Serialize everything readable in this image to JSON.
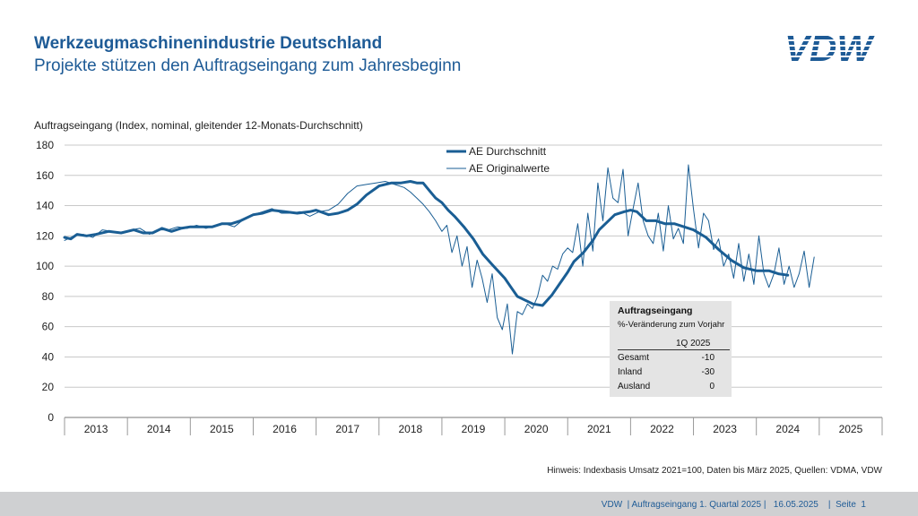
{
  "slide": {
    "title": "Werkzeugmaschinenindustrie Deutschland",
    "subtitle": "Projekte stützen den Auftragseingang zum Jahresbeginn",
    "logo_text": "VDW",
    "note": "Hinweis: Indexbasis Umsatz 2021=100, Daten bis März 2025, Quellen: VDMA, VDW",
    "footer": "VDW  | Auftragseingang 1. Quartal 2025 |   16.05.2025    |  Seite  1"
  },
  "colors": {
    "brand": "#1e5b96",
    "series": "#1a5e94",
    "grid": "#c8c8c8",
    "footer_bg": "#cfd0d2",
    "box_bg": "#e4e4e4"
  },
  "stat_box": {
    "title": "Auftragseingang",
    "subtitle": "%-Veränderung zum Vorjahr",
    "column_header": "1Q 2025",
    "rows": [
      {
        "label": "Gesamt",
        "value": "-10"
      },
      {
        "label": "Inland",
        "value": "-30"
      },
      {
        "label": "Ausland",
        "value": "0"
      }
    ]
  },
  "chart_data": {
    "type": "line",
    "title": "",
    "ylabel": "Auftragseingang (Index, nominal, gleitender 12-Monats-Durchschnitt)",
    "xlabel": "",
    "ylim": [
      0,
      180
    ],
    "yticks": [
      0,
      20,
      40,
      60,
      80,
      100,
      120,
      140,
      160,
      180
    ],
    "xlim": [
      2013,
      2026
    ],
    "categories": [
      "2013",
      "2014",
      "2015",
      "2016",
      "2017",
      "2018",
      "2019",
      "2020",
      "2021",
      "2022",
      "2023",
      "2024",
      "2025"
    ],
    "grid": true,
    "legend_position": "top-center",
    "series": [
      {
        "name": "AE Durchschnitt",
        "style": "thick",
        "x": [
          2013.0,
          2013.1,
          2013.2,
          2013.35,
          2013.5,
          2013.7,
          2013.9,
          2014.1,
          2014.25,
          2014.4,
          2014.55,
          2014.7,
          2014.85,
          2015.0,
          2015.2,
          2015.35,
          2015.5,
          2015.65,
          2015.8,
          2016.0,
          2016.15,
          2016.3,
          2016.5,
          2016.7,
          2016.9,
          2017.0,
          2017.2,
          2017.35,
          2017.5,
          2017.65,
          2017.8,
          2018.0,
          2018.2,
          2018.35,
          2018.5,
          2018.6,
          2018.7,
          2018.8,
          2018.9,
          2019.0,
          2019.1,
          2019.2,
          2019.35,
          2019.5,
          2019.65,
          2019.8,
          2020.0,
          2020.1,
          2020.2,
          2020.3,
          2020.45,
          2020.6,
          2020.75,
          2020.9,
          2021.0,
          2021.1,
          2021.25,
          2021.4,
          2021.5,
          2021.6,
          2021.75,
          2021.9,
          2022.0,
          2022.1,
          2022.25,
          2022.4,
          2022.55,
          2022.7,
          2022.85,
          2023.0,
          2023.2,
          2023.4,
          2023.6,
          2023.8,
          2024.0,
          2024.2,
          2024.35,
          2024.5
        ],
        "values": [
          119,
          118,
          121,
          120,
          121,
          123,
          122,
          124,
          122,
          122,
          125,
          123,
          125,
          126,
          126,
          126,
          128,
          128,
          130,
          134,
          135,
          137,
          136,
          135,
          136,
          137,
          134,
          135,
          137,
          141,
          147,
          153,
          155,
          155,
          156,
          155,
          155,
          150,
          145,
          142,
          137,
          133,
          126,
          118,
          108,
          101,
          92,
          86,
          80,
          78,
          75,
          74,
          81,
          90,
          96,
          103,
          109,
          117,
          124,
          128,
          134,
          136,
          137,
          136,
          130,
          130,
          128,
          128,
          126,
          124,
          119,
          111,
          104,
          99,
          97,
          97,
          95,
          94
        ]
      },
      {
        "name": "AE Originalwerte",
        "style": "thin",
        "x": [
          2013.0,
          2013.15,
          2013.3,
          2013.45,
          2013.6,
          2013.75,
          2013.9,
          2014.05,
          2014.2,
          2014.35,
          2014.5,
          2014.65,
          2014.8,
          2014.95,
          2015.1,
          2015.25,
          2015.4,
          2015.55,
          2015.7,
          2015.85,
          2016.0,
          2016.15,
          2016.3,
          2016.45,
          2016.6,
          2016.75,
          2016.9,
          2017.05,
          2017.2,
          2017.35,
          2017.5,
          2017.65,
          2017.8,
          2017.95,
          2018.1,
          2018.25,
          2018.4,
          2018.5,
          2018.6,
          2018.7,
          2018.8,
          2018.9,
          2019.0,
          2019.08,
          2019.16,
          2019.24,
          2019.32,
          2019.4,
          2019.48,
          2019.56,
          2019.64,
          2019.72,
          2019.8,
          2019.88,
          2019.96,
          2020.04,
          2020.12,
          2020.2,
          2020.28,
          2020.36,
          2020.44,
          2020.52,
          2020.6,
          2020.68,
          2020.76,
          2020.84,
          2020.92,
          2021.0,
          2021.08,
          2021.16,
          2021.24,
          2021.32,
          2021.4,
          2021.48,
          2021.56,
          2021.64,
          2021.72,
          2021.8,
          2021.88,
          2021.96,
          2022.04,
          2022.12,
          2022.2,
          2022.28,
          2022.36,
          2022.44,
          2022.52,
          2022.6,
          2022.68,
          2022.76,
          2022.84,
          2022.92,
          2023.0,
          2023.08,
          2023.16,
          2023.24,
          2023.32,
          2023.4,
          2023.48,
          2023.56,
          2023.64,
          2023.72,
          2023.8,
          2023.88,
          2023.96,
          2024.04,
          2024.12,
          2024.2,
          2024.28,
          2024.36,
          2024.44,
          2024.52,
          2024.6,
          2024.68,
          2024.76,
          2024.84,
          2024.92
        ],
        "values": [
          117,
          120,
          121,
          119,
          124,
          123,
          122,
          124,
          125,
          121,
          124,
          124,
          126,
          125,
          127,
          125,
          127,
          128,
          126,
          131,
          134,
          136,
          138,
          135,
          135,
          136,
          133,
          136,
          137,
          141,
          148,
          153,
          154,
          155,
          156,
          154,
          152,
          149,
          145,
          141,
          136,
          130,
          123,
          127,
          109,
          120,
          100,
          113,
          86,
          104,
          92,
          76,
          95,
          66,
          58,
          75,
          42,
          70,
          68,
          75,
          72,
          80,
          94,
          90,
          100,
          98,
          108,
          112,
          109,
          128,
          100,
          135,
          110,
          155,
          130,
          165,
          145,
          142,
          164,
          120,
          138,
          155,
          130,
          120,
          115,
          135,
          110,
          140,
          118,
          125,
          115,
          167,
          138,
          112,
          135,
          130,
          111,
          118,
          100,
          108,
          92,
          115,
          90,
          108,
          88,
          120,
          95,
          86,
          95,
          112,
          88,
          100,
          86,
          95,
          110,
          86,
          106
        ]
      }
    ]
  }
}
